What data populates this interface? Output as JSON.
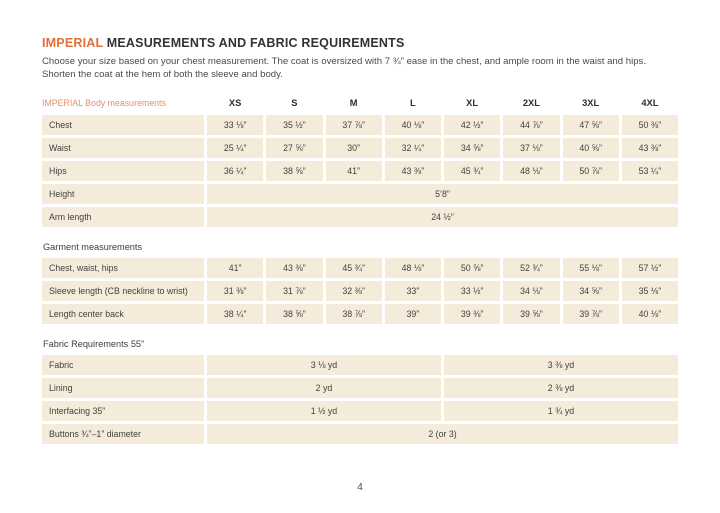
{
  "colors": {
    "accent_orange": "#E26F3B",
    "row_beige": "#F5EBDA",
    "text_dark": "#404040"
  },
  "header": {
    "title_accent": "IMPERIAL",
    "title_rest": " MEASUREMENTS AND FABRIC REQUIREMENTS",
    "intro": "Choose your size based on your chest measurement. The coat is oversized with 7 ¾” ease in the chest, and ample room in the waist and hips. Shorten the coat at the hem of both the sleeve and body."
  },
  "table": {
    "header_label": "IMPERIAL Body measurements",
    "size_columns": [
      "XS",
      "S",
      "M",
      "L",
      "XL",
      "2XL",
      "3XL",
      "4XL"
    ],
    "rows": [
      {
        "type": "values",
        "label": "Chest",
        "values": [
          "33 ⅛”",
          "35 ½”",
          "37 ⅞”",
          "40 ⅛”",
          "42 ½”",
          "44 ⅞”",
          "47 ⅝”",
          "50 ⅜”"
        ]
      },
      {
        "type": "values",
        "label": "Waist",
        "values": [
          "25 ¼”",
          "27 ⅝”",
          "30”",
          "32 ¼”",
          "34 ⅝”",
          "37 ⅛”",
          "40 ⅝”",
          "43 ⅜”"
        ]
      },
      {
        "type": "values",
        "label": "Hips",
        "values": [
          "36 ¼”",
          "38 ⅝”",
          "41”",
          "43 ⅜”",
          "45 ¾”",
          "48 ⅛”",
          "50 ⅞”",
          "53 ¼”"
        ]
      },
      {
        "type": "span",
        "label": "Height",
        "value": "5‘8”"
      },
      {
        "type": "span",
        "label": "Arm length",
        "value": "24 ½”"
      },
      {
        "type": "section",
        "label": "Garment measurements"
      },
      {
        "type": "values",
        "label": "Chest, waist, hips",
        "values": [
          "41”",
          "43 ⅜”",
          "45 ¾”",
          "48 ⅛”",
          "50 ⅝”",
          "52 ¾”",
          "55 ⅛”",
          "57 ½”"
        ]
      },
      {
        "type": "values",
        "label": "Sleeve length (CB neckline to wrist)",
        "values": [
          "31 ⅜”",
          "31 ⅞”",
          "32 ⅜”",
          "33”",
          "33 ½”",
          "34 ⅛”",
          "34 ⅝”",
          "35 ⅛”"
        ]
      },
      {
        "type": "values",
        "label": "Length center back",
        "values": [
          "38 ¼”",
          "38 ⅝”",
          "38 ⅞”",
          "39”",
          "39 ⅜”",
          "39 ⅝”",
          "39 ⅞”",
          "40 ⅛”"
        ]
      },
      {
        "type": "section",
        "label": "Fabric Requirements 55”"
      },
      {
        "type": "half",
        "label": "Fabric",
        "left": "3 ⅛ yd",
        "right": "3 ⅜ yd"
      },
      {
        "type": "half",
        "label": "Lining",
        "left": "2 yd",
        "right": "2 ⅜ yd"
      },
      {
        "type": "half",
        "label": "Interfacing 35”",
        "left": "1 ½ yd",
        "right": "1 ¾ yd"
      },
      {
        "type": "span",
        "label": "Buttons  ¾”–1” diameter",
        "value": "2 (or 3)"
      }
    ]
  },
  "footer": {
    "page_number": "4"
  }
}
